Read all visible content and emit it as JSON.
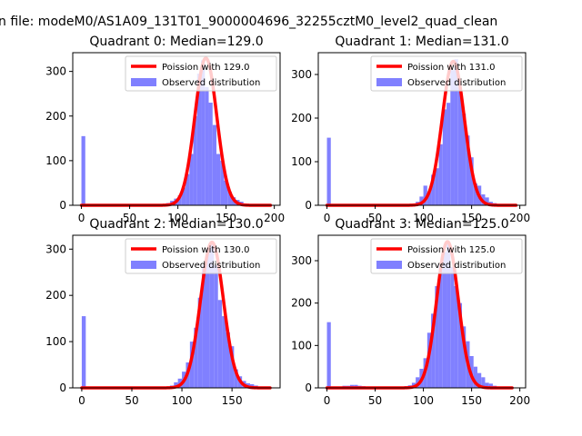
{
  "figure": {
    "suptitle": "n file: modeM0/AS1A09_131T01_9000004696_32255cztM0_level2_quad_clean",
    "colors": {
      "fit": "#ff0000",
      "hist": "#8080ff",
      "axis": "#000000",
      "legend_edge": "#cccccc"
    }
  },
  "chart_data": [
    {
      "type": "bar",
      "title": "Quadrant 0: Median=129.0",
      "xlim": [
        -9,
        206
      ],
      "ylim": [
        0,
        342
      ],
      "xticks": [
        0,
        50,
        100,
        150,
        200
      ],
      "yticks": [
        0,
        100,
        200,
        300
      ],
      "legend": {
        "placement": "top-right",
        "fit_label": "Poission with 129.0",
        "hist_label": "Observed distribution"
      },
      "bin_width": 4,
      "bins": [
        [
          0,
          155
        ],
        [
          4,
          3
        ],
        [
          8,
          1
        ],
        [
          12,
          1
        ],
        [
          16,
          1
        ],
        [
          20,
          1
        ],
        [
          24,
          1
        ],
        [
          28,
          1
        ],
        [
          32,
          1
        ],
        [
          36,
          1
        ],
        [
          40,
          1
        ],
        [
          44,
          1
        ],
        [
          48,
          1
        ],
        [
          52,
          1
        ],
        [
          56,
          1
        ],
        [
          60,
          1
        ],
        [
          64,
          1
        ],
        [
          68,
          1
        ],
        [
          72,
          1
        ],
        [
          76,
          1
        ],
        [
          80,
          1
        ],
        [
          84,
          2
        ],
        [
          88,
          5
        ],
        [
          92,
          10
        ],
        [
          96,
          15
        ],
        [
          100,
          22
        ],
        [
          104,
          40
        ],
        [
          108,
          70
        ],
        [
          112,
          115
        ],
        [
          116,
          200
        ],
        [
          120,
          295
        ],
        [
          124,
          325
        ],
        [
          128,
          265
        ],
        [
          132,
          230
        ],
        [
          136,
          180
        ],
        [
          140,
          115
        ],
        [
          144,
          100
        ],
        [
          148,
          55
        ],
        [
          152,
          30
        ],
        [
          156,
          18
        ],
        [
          160,
          12
        ],
        [
          164,
          8
        ],
        [
          168,
          4
        ],
        [
          172,
          3
        ],
        [
          176,
          2
        ],
        [
          180,
          1
        ],
        [
          184,
          1
        ],
        [
          188,
          1
        ],
        [
          192,
          1
        ],
        [
          196,
          1
        ]
      ],
      "fit": {
        "mean": 129.0,
        "peak": 330,
        "x_range": [
          0,
          196
        ]
      }
    },
    {
      "type": "bar",
      "title": "Quadrant 1: Median=131.0",
      "xlim": [
        -9,
        206
      ],
      "ylim": [
        0,
        350
      ],
      "xticks": [
        0,
        50,
        100,
        150,
        200
      ],
      "yticks": [
        0,
        100,
        200,
        300
      ],
      "legend": {
        "placement": "top-right",
        "fit_label": "Poission with 131.0",
        "hist_label": "Observed distribution"
      },
      "bin_width": 4,
      "bins": [
        [
          0,
          155
        ],
        [
          4,
          2
        ],
        [
          8,
          1
        ],
        [
          12,
          1
        ],
        [
          16,
          1
        ],
        [
          20,
          1
        ],
        [
          24,
          1
        ],
        [
          28,
          1
        ],
        [
          32,
          1
        ],
        [
          36,
          1
        ],
        [
          40,
          1
        ],
        [
          44,
          1
        ],
        [
          48,
          1
        ],
        [
          52,
          1
        ],
        [
          56,
          1
        ],
        [
          60,
          1
        ],
        [
          64,
          1
        ],
        [
          68,
          1
        ],
        [
          72,
          1
        ],
        [
          76,
          1
        ],
        [
          80,
          1
        ],
        [
          84,
          2
        ],
        [
          88,
          4
        ],
        [
          92,
          8
        ],
        [
          96,
          20
        ],
        [
          100,
          45
        ],
        [
          104,
          30
        ],
        [
          108,
          70
        ],
        [
          112,
          85
        ],
        [
          116,
          140
        ],
        [
          120,
          220
        ],
        [
          124,
          235
        ],
        [
          128,
          310
        ],
        [
          132,
          335
        ],
        [
          136,
          270
        ],
        [
          140,
          210
        ],
        [
          144,
          160
        ],
        [
          148,
          110
        ],
        [
          152,
          50
        ],
        [
          156,
          45
        ],
        [
          160,
          25
        ],
        [
          164,
          18
        ],
        [
          168,
          8
        ],
        [
          172,
          5
        ],
        [
          176,
          3
        ],
        [
          180,
          2
        ],
        [
          184,
          2
        ],
        [
          188,
          1
        ],
        [
          192,
          1
        ]
      ],
      "fit": {
        "mean": 131.0,
        "peak": 330,
        "x_range": [
          0,
          196
        ]
      }
    },
    {
      "type": "bar",
      "title": "Quadrant 2: Median=130.0",
      "xlim": [
        -9,
        198
      ],
      "ylim": [
        0,
        330
      ],
      "xticks": [
        0,
        50,
        100,
        150
      ],
      "yticks": [
        0,
        100,
        200,
        300
      ],
      "legend": {
        "placement": "top-right",
        "fit_label": "Poission with 130.0",
        "hist_label": "Observed distribution"
      },
      "bin_width": 4,
      "bins": [
        [
          0,
          155
        ],
        [
          4,
          2
        ],
        [
          8,
          1
        ],
        [
          12,
          1
        ],
        [
          16,
          1
        ],
        [
          20,
          1
        ],
        [
          24,
          1
        ],
        [
          28,
          1
        ],
        [
          32,
          1
        ],
        [
          36,
          1
        ],
        [
          40,
          1
        ],
        [
          44,
          1
        ],
        [
          48,
          1
        ],
        [
          52,
          1
        ],
        [
          56,
          1
        ],
        [
          60,
          1
        ],
        [
          64,
          1
        ],
        [
          68,
          1
        ],
        [
          72,
          1
        ],
        [
          76,
          1
        ],
        [
          80,
          1
        ],
        [
          84,
          2
        ],
        [
          88,
          5
        ],
        [
          92,
          12
        ],
        [
          96,
          20
        ],
        [
          100,
          35
        ],
        [
          104,
          55
        ],
        [
          108,
          100
        ],
        [
          112,
          130
        ],
        [
          116,
          195
        ],
        [
          120,
          265
        ],
        [
          124,
          300
        ],
        [
          128,
          310
        ],
        [
          132,
          265
        ],
        [
          136,
          190
        ],
        [
          140,
          155
        ],
        [
          144,
          120
        ],
        [
          148,
          90
        ],
        [
          152,
          40
        ],
        [
          156,
          25
        ],
        [
          160,
          15
        ],
        [
          164,
          10
        ],
        [
          168,
          8
        ],
        [
          172,
          5
        ],
        [
          176,
          3
        ],
        [
          180,
          2
        ],
        [
          184,
          1
        ]
      ],
      "fit": {
        "mean": 130.0,
        "peak": 315,
        "x_range": [
          0,
          188
        ]
      }
    },
    {
      "type": "bar",
      "title": "Quadrant 3: Median=125.0",
      "xlim": [
        -9,
        206
      ],
      "ylim": [
        0,
        360
      ],
      "xticks": [
        0,
        50,
        100,
        150,
        200
      ],
      "yticks": [
        0,
        100,
        200,
        300
      ],
      "legend": {
        "placement": "top-right",
        "fit_label": "Poission with 125.0",
        "hist_label": "Observed distribution"
      },
      "bin_width": 4,
      "bins": [
        [
          0,
          155
        ],
        [
          4,
          3
        ],
        [
          8,
          2
        ],
        [
          12,
          3
        ],
        [
          16,
          5
        ],
        [
          20,
          5
        ],
        [
          24,
          7
        ],
        [
          28,
          7
        ],
        [
          32,
          5
        ],
        [
          36,
          4
        ],
        [
          40,
          3
        ],
        [
          44,
          3
        ],
        [
          48,
          2
        ],
        [
          52,
          2
        ],
        [
          56,
          2
        ],
        [
          60,
          2
        ],
        [
          64,
          2
        ],
        [
          68,
          2
        ],
        [
          72,
          3
        ],
        [
          76,
          3
        ],
        [
          80,
          4
        ],
        [
          84,
          6
        ],
        [
          88,
          12
        ],
        [
          92,
          25
        ],
        [
          96,
          45
        ],
        [
          100,
          70
        ],
        [
          104,
          130
        ],
        [
          108,
          175
        ],
        [
          112,
          240
        ],
        [
          116,
          290
        ],
        [
          120,
          320
        ],
        [
          124,
          340
        ],
        [
          128,
          285
        ],
        [
          132,
          240
        ],
        [
          136,
          200
        ],
        [
          140,
          145
        ],
        [
          144,
          110
        ],
        [
          148,
          75
        ],
        [
          152,
          50
        ],
        [
          156,
          35
        ],
        [
          160,
          25
        ],
        [
          164,
          12
        ],
        [
          168,
          10
        ],
        [
          172,
          5
        ],
        [
          176,
          3
        ],
        [
          180,
          2
        ],
        [
          184,
          1
        ],
        [
          188,
          1
        ]
      ],
      "fit": {
        "mean": 125.0,
        "peak": 345,
        "x_range": [
          0,
          192
        ]
      }
    }
  ]
}
